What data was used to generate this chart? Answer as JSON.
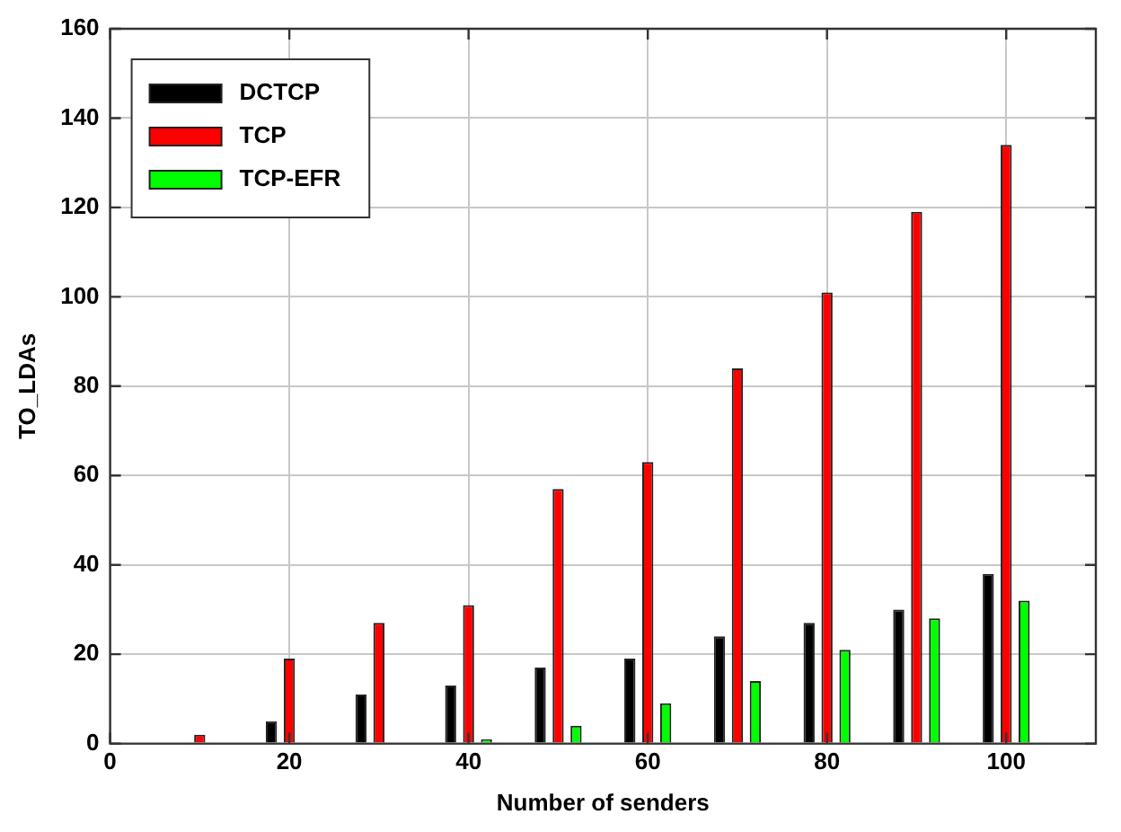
{
  "chart_data": {
    "type": "bar",
    "xlabel": "Number of senders",
    "ylabel": "TO_LDAs",
    "x": [
      10,
      20,
      30,
      40,
      50,
      60,
      70,
      80,
      90,
      100
    ],
    "series": [
      {
        "name": "DCTCP",
        "color": "#000000",
        "values": [
          0,
          5,
          11,
          13,
          17,
          19,
          24,
          27,
          30,
          38
        ]
      },
      {
        "name": "TCP",
        "color": "#ff0000",
        "values": [
          2,
          19,
          27,
          31,
          57,
          63,
          84,
          101,
          119,
          134
        ]
      },
      {
        "name": "TCP-EFR",
        "color": "#00ff00",
        "values": [
          0,
          0,
          0,
          1,
          4,
          9,
          14,
          21,
          28,
          32
        ]
      }
    ],
    "xlim": [
      0,
      110
    ],
    "xticks": [
      0,
      20,
      40,
      60,
      80,
      100
    ],
    "ylim": [
      0,
      160
    ],
    "yticks": [
      0,
      20,
      40,
      60,
      80,
      100,
      120,
      140,
      160
    ],
    "grid": true,
    "legend": "top left"
  }
}
